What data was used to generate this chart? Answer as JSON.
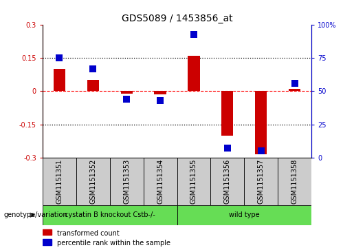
{
  "title": "GDS5089 / 1453856_at",
  "samples": [
    "GSM1151351",
    "GSM1151352",
    "GSM1151353",
    "GSM1151354",
    "GSM1151355",
    "GSM1151356",
    "GSM1151357",
    "GSM1151358"
  ],
  "transformed_count": [
    0.1,
    0.05,
    -0.01,
    -0.015,
    0.16,
    -0.2,
    -0.285,
    0.01
  ],
  "percentile_rank": [
    75,
    67,
    44,
    43,
    93,
    7,
    5,
    56
  ],
  "bar_color": "#cc0000",
  "dot_color": "#0000cc",
  "ylim_left": [
    -0.3,
    0.3
  ],
  "ylim_right": [
    0,
    100
  ],
  "yticks_left": [
    -0.3,
    -0.15,
    0.0,
    0.15,
    0.3
  ],
  "ytick_labels_left": [
    "-0.3",
    "-0.15",
    "0",
    "0.15",
    "0.3"
  ],
  "yticks_right": [
    0,
    25,
    50,
    75,
    100
  ],
  "ytick_labels_right": [
    "0",
    "25",
    "50",
    "75",
    "100%"
  ],
  "hline_dotted_vals": [
    0.15,
    -0.15
  ],
  "hline_dashed_val": 0.0,
  "group1_label": "cystatin B knockout Cstb-/-",
  "group1_indices": [
    0,
    1,
    2,
    3
  ],
  "group2_label": "wild type",
  "group2_indices": [
    4,
    5,
    6,
    7
  ],
  "group_color": "#66dd55",
  "sample_box_color": "#cccccc",
  "genotype_label": "genotype/variation",
  "legend_bar_label": "transformed count",
  "legend_dot_label": "percentile rank within the sample",
  "bar_width": 0.35,
  "dot_size": 45,
  "title_fontsize": 10,
  "tick_fontsize": 7,
  "label_fontsize": 8
}
